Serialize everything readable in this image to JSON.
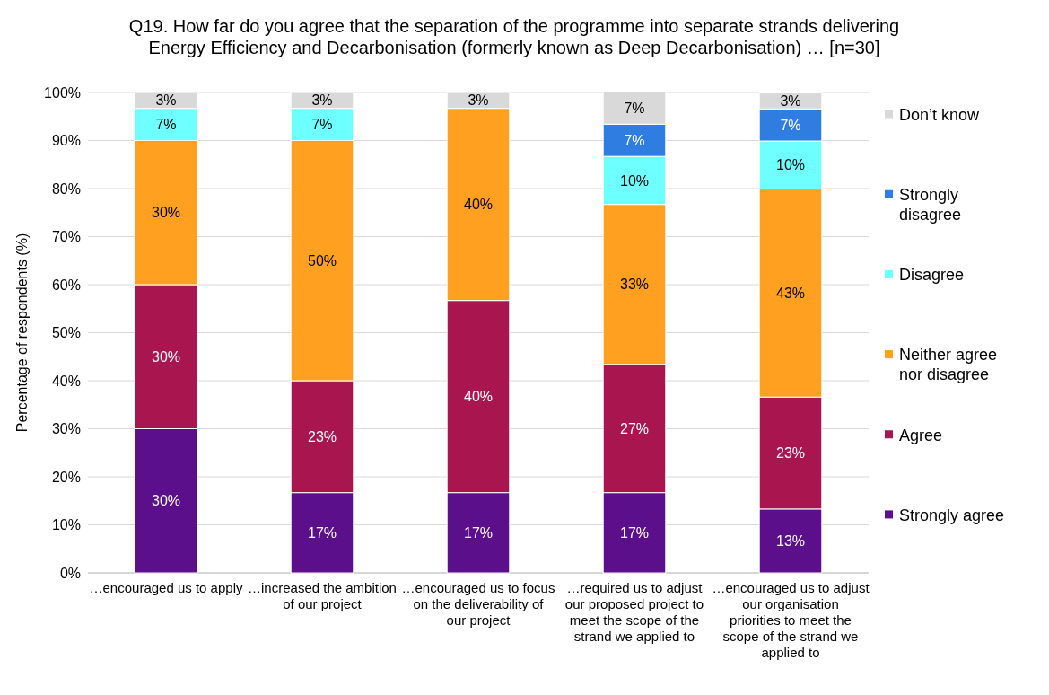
{
  "chart_data": {
    "type": "bar",
    "stacked": true,
    "title": "Q19. How far do you agree that the separation of the programme into separate strands delivering Energy Efficiency and Decarbonisation (formerly known as Deep Decarbonisation) … [n=30]",
    "ylabel": "Percentage of respondents (%)",
    "categories": [
      "…encouraged us to apply",
      "…increased the ambition of our project",
      "…encouraged us to focus on the deliverability of our project",
      "…required us to adjust our proposed project to meet the scope of the strand we applied to",
      "…encouraged us to adjust our organisation priorities to meet the scope of the strand we applied to"
    ],
    "series": [
      {
        "name": "Strongly agree",
        "color": "#5c0f8b",
        "values": [
          30,
          16.7,
          16.7,
          16.7,
          13.3
        ],
        "value_labels": [
          "30%",
          "17%",
          "17%",
          "17%",
          "13%"
        ]
      },
      {
        "name": "Agree",
        "color": "#a8154f",
        "values": [
          30,
          23.3,
          40,
          26.7,
          23.3
        ],
        "value_labels": [
          "30%",
          "23%",
          "40%",
          "27%",
          "23%"
        ]
      },
      {
        "name": "Neither agree nor disagree",
        "color": "#ffa020",
        "values": [
          30,
          50,
          40,
          33.3,
          43.3
        ],
        "value_labels": [
          "30%",
          "50%",
          "40%",
          "33%",
          "43%"
        ]
      },
      {
        "name": "Disagree",
        "color": "#6effff",
        "values": [
          6.7,
          6.7,
          null,
          10,
          10
        ],
        "value_labels": [
          "7%",
          "7%",
          null,
          "10%",
          "10%"
        ]
      },
      {
        "name": "Strongly disagree",
        "color": "#2f7de0",
        "values": [
          null,
          null,
          null,
          6.7,
          6.7
        ],
        "value_labels": [
          null,
          null,
          null,
          "7%",
          "7%"
        ]
      },
      {
        "name": "Don’t know",
        "color": "#d9d9d9",
        "values": [
          3.3,
          3.3,
          3.3,
          6.7,
          3.3
        ],
        "value_labels": [
          "3%",
          "3%",
          "3%",
          "7%",
          "3%"
        ]
      }
    ],
    "ylim": [
      0,
      100
    ],
    "yticks": [
      {
        "value": 0,
        "label": "0%"
      },
      {
        "value": 10,
        "label": "10%"
      },
      {
        "value": 20,
        "label": "20%"
      },
      {
        "value": 30,
        "label": "30%"
      },
      {
        "value": 40,
        "label": "40%"
      },
      {
        "value": 50,
        "label": "50%"
      },
      {
        "value": 60,
        "label": "60%"
      },
      {
        "value": 70,
        "label": "70%"
      },
      {
        "value": 80,
        "label": "80%"
      },
      {
        "value": 90,
        "label": "90%"
      },
      {
        "value": 100,
        "label": "100%"
      }
    ],
    "grid": "y",
    "legend": "right"
  }
}
